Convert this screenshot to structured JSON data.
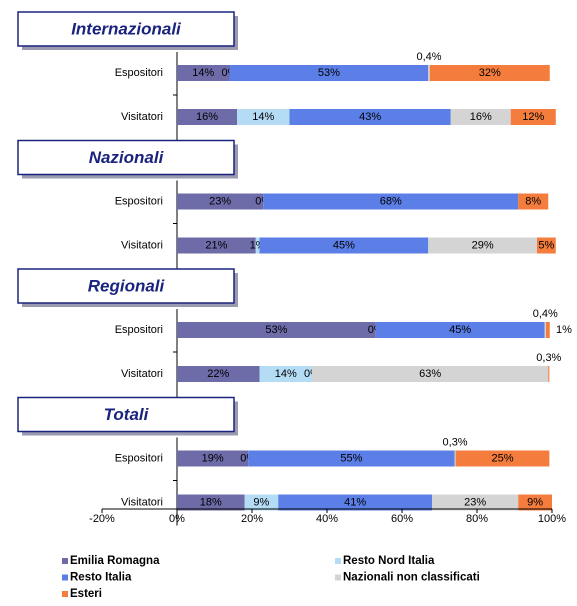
{
  "chart_data": {
    "type": "bar",
    "orientation": "horizontal",
    "stacked": true,
    "groups": [
      {
        "title": "Internazionali",
        "categories": [
          "Espositori",
          "Visitatori"
        ]
      },
      {
        "title": "Nazionali",
        "categories": [
          "Espositori",
          "Visitatori"
        ]
      },
      {
        "title": "Regionali",
        "categories": [
          "Espositori",
          "Visitatori"
        ]
      },
      {
        "title": "Totali",
        "categories": [
          "Espositori",
          "Visitatori"
        ]
      }
    ],
    "series": [
      {
        "name": "Emilia Romagna",
        "color": "#6d6ba8",
        "values": [
          14,
          16,
          23,
          21,
          53,
          22,
          19,
          18
        ],
        "value_labels": [
          "14%",
          "16%",
          "23%",
          "21%",
          "53%",
          "22%",
          "19%",
          "18%"
        ]
      },
      {
        "name": "Resto Nord Italia",
        "color": "#b5dcf5",
        "values": [
          0,
          14,
          0,
          1,
          0,
          14,
          0,
          9
        ],
        "value_labels": [
          "0%",
          "14%",
          "0%",
          "1%",
          "0%",
          "14%",
          "0%",
          "9%"
        ]
      },
      {
        "name": "Resto Italia",
        "color": "#5b7fe6",
        "values": [
          53,
          43,
          68,
          45,
          45,
          0,
          55,
          41
        ],
        "value_labels": [
          "53%",
          "43%",
          "68%",
          "45%",
          "45%",
          "0%",
          "55%",
          "41%"
        ]
      },
      {
        "name": "Nazionali non classificati",
        "color": "#d4d4d4",
        "values": [
          0.4,
          16,
          null,
          29,
          0.4,
          63,
          0.3,
          23
        ],
        "value_labels": [
          "0,4%",
          "16%",
          null,
          "29%",
          "0,4%",
          "63%",
          "0,3%",
          "23%"
        ]
      },
      {
        "name": "Esteri",
        "color": "#f47c3c",
        "values": [
          32,
          12,
          8,
          5,
          1,
          0.3,
          25,
          9
        ],
        "value_labels": [
          "32%",
          "12%",
          "8%",
          "5%",
          "1%",
          "0,3%",
          "25%",
          "9%"
        ]
      }
    ],
    "xlim": [
      -20,
      100
    ],
    "xticks": [
      {
        "value": -20,
        "label": "-20%"
      },
      {
        "value": 0,
        "label": "0%"
      },
      {
        "value": 20,
        "label": "20%"
      },
      {
        "value": 40,
        "label": "40%"
      },
      {
        "value": 60,
        "label": "60%"
      },
      {
        "value": 80,
        "label": "80%"
      },
      {
        "value": 100,
        "label": "100%"
      }
    ],
    "legend": "bottom"
  }
}
